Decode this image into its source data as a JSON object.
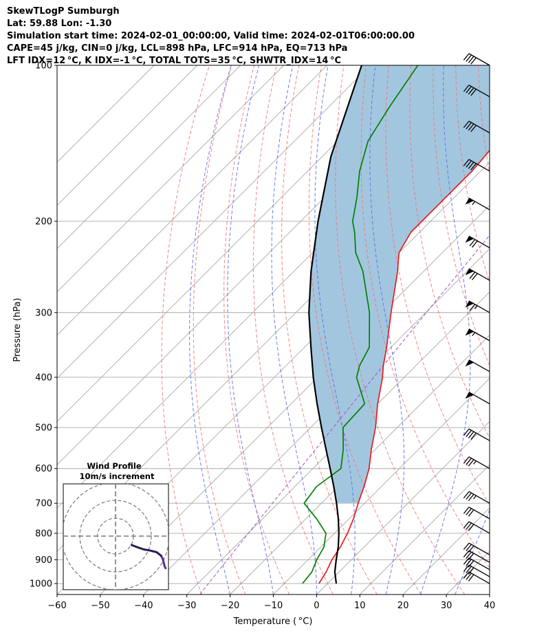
{
  "header": {
    "line1": "SkewTLogP Sumburgh",
    "line2": "Lat: 59.88   Lon: -1.30",
    "line3": "Simulation start time: 2024-02-01_00:00:00, Valid time: 2024-02-01T06:00:00.00",
    "line4": "CAPE=45 j/kg, CIN=0 j/kg, LCL=898 hPa, LFC=914 hPa, EQ=713 hPa",
    "line5": "LFT IDX=12 °C, K IDX=-1 °C, TOTAL TOTS=35 °C, SHWTR_IDX=14 °C"
  },
  "chart_data": {
    "type": "line",
    "subtype": "skew-t log-p",
    "xlabel": "Temperature ( °C)",
    "ylabel": "Pressure (hPa)",
    "xlim": [
      -60,
      40
    ],
    "ylim": [
      1050,
      100
    ],
    "yscale": "log",
    "grid": true,
    "xticks": [
      -60,
      -50,
      -40,
      -30,
      -20,
      -10,
      0,
      10,
      20,
      30,
      40
    ],
    "yticks": [
      1000,
      900,
      800,
      700,
      600,
      500,
      400,
      300,
      200,
      100
    ],
    "colors": {
      "temperature": "#e41a1c",
      "dewpoint": "#008000",
      "parcel": "#000000",
      "cape_fill": "#a3c6df",
      "dry_adiabat": "#f07070",
      "moist_adiabat": "#5a6ee6",
      "mixing_ratio": "#a050c0",
      "isotherm": "#a8a8a8"
    },
    "series": [
      {
        "key": "temperature",
        "pressure": [
          1000,
          950,
          900,
          850,
          800,
          750,
          700,
          650,
          600,
          550,
          500,
          450,
          400,
          380,
          350,
          300,
          250,
          230,
          210,
          200,
          180,
          160,
          140,
          120,
          100
        ],
        "temp": [
          -2.0,
          -3.0,
          -4.5,
          -5.5,
          -7.0,
          -9.0,
          -11.5,
          -14.0,
          -17.0,
          -21.0,
          -25.0,
          -30.0,
          -35.0,
          -37.5,
          -41.0,
          -48.0,
          -56.0,
          -60.0,
          -62.0,
          -62.0,
          -62.0,
          -62.0,
          -63.0,
          -65.0,
          -69.0
        ]
      },
      {
        "key": "dewpoint",
        "pressure": [
          1000,
          950,
          900,
          850,
          800,
          750,
          700,
          650,
          600,
          550,
          500,
          450,
          400,
          380,
          350,
          300,
          250,
          230,
          210,
          200,
          180,
          160,
          140,
          120,
          100
        ],
        "temp": [
          -5.8,
          -6.3,
          -8.0,
          -9.3,
          -12.0,
          -17.5,
          -24.0,
          -25.0,
          -23.5,
          -27.5,
          -32.5,
          -33.0,
          -41.0,
          -43.0,
          -45.0,
          -53.0,
          -64.0,
          -70.0,
          -75.0,
          -78.0,
          -82.5,
          -88.0,
          -93.0,
          -96.0,
          -99.0
        ]
      },
      {
        "key": "parcel",
        "pressure": [
          1000,
          950,
          900,
          850,
          800,
          750,
          700,
          650,
          600,
          550,
          500,
          450,
          400,
          350,
          300,
          250,
          200,
          150,
          100
        ],
        "temp": [
          2.0,
          -1.0,
          -3.5,
          -6.0,
          -9.0,
          -12.5,
          -16.5,
          -21.0,
          -26.0,
          -31.5,
          -37.5,
          -44.0,
          -51.0,
          -58.5,
          -67.0,
          -76.0,
          -86.0,
          -98.0,
          -112.0
        ]
      }
    ],
    "wind_barbs": [
      {
        "pressure": 1000,
        "speed": 30,
        "direction": 300
      },
      {
        "pressure": 970,
        "speed": 30,
        "direction": 300
      },
      {
        "pressure": 940,
        "speed": 30,
        "direction": 300
      },
      {
        "pressure": 910,
        "speed": 30,
        "direction": 300
      },
      {
        "pressure": 880,
        "speed": 30,
        "direction": 300
      },
      {
        "pressure": 800,
        "speed": 30,
        "direction": 300
      },
      {
        "pressure": 750,
        "speed": 30,
        "direction": 300
      },
      {
        "pressure": 700,
        "speed": 35,
        "direction": 300
      },
      {
        "pressure": 600,
        "speed": 35,
        "direction": 300
      },
      {
        "pressure": 530,
        "speed": 40,
        "direction": 300
      },
      {
        "pressure": 450,
        "speed": 50,
        "direction": 300
      },
      {
        "pressure": 390,
        "speed": 50,
        "direction": 300
      },
      {
        "pressure": 340,
        "speed": 55,
        "direction": 300
      },
      {
        "pressure": 300,
        "speed": 65,
        "direction": 300
      },
      {
        "pressure": 260,
        "speed": 70,
        "direction": 300
      },
      {
        "pressure": 225,
        "speed": 70,
        "direction": 300
      },
      {
        "pressure": 190,
        "speed": 55,
        "direction": 300
      },
      {
        "pressure": 160,
        "speed": 40,
        "direction": 300
      },
      {
        "pressure": 135,
        "speed": 40,
        "direction": 300
      },
      {
        "pressure": 115,
        "speed": 40,
        "direction": 300
      },
      {
        "pressure": 100,
        "speed": 40,
        "direction": 300
      }
    ],
    "inset": {
      "title1": "Wind Profile",
      "title2": "10m/s increment",
      "type": "hodograph",
      "ring_increment": 10,
      "u": [
        28,
        27.5,
        27,
        26.5,
        25.5,
        23,
        19,
        16,
        13,
        9
      ],
      "v": [
        -18,
        -17,
        -15,
        -13,
        -11,
        -9,
        -8,
        -7.5,
        -6.5,
        -5
      ],
      "line_colors": [
        "#2b1b4e",
        "#5b2d8e"
      ]
    }
  }
}
